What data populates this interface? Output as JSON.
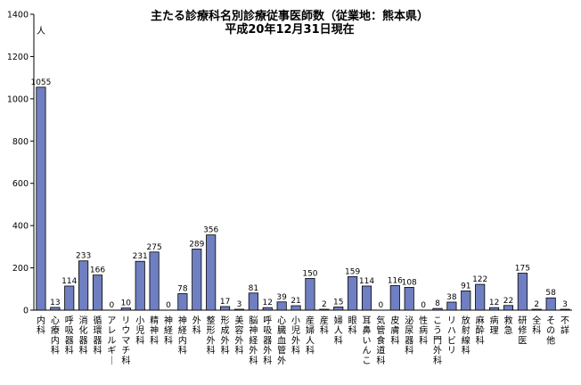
{
  "chart_data": {
    "type": "bar",
    "title": "主たる診療科名別診療従事医師数（従業地：熊本県）",
    "subtitle": "平成20年12月31日現在",
    "ylabel": "人",
    "ylim": [
      0,
      1400
    ],
    "yticks": [
      0,
      200,
      400,
      600,
      800,
      1000,
      1200,
      1400
    ],
    "grid": false,
    "bar_color": "#6f7fc1",
    "categories": [
      "内科",
      "心療内科",
      "呼吸器科",
      "消化器科",
      "循環器科",
      "アレルギー",
      "リウマチ科",
      "小児科",
      "精神科",
      "神経科",
      "神経内科",
      "外科",
      "整形外科",
      "形成外科",
      "美容外科",
      "脳神経外科",
      "呼吸器外科",
      "心臓血管外",
      "小児外科",
      "産婦人科",
      "産科",
      "婦人科",
      "眼科",
      "耳鼻いんこ",
      "気管食道科",
      "皮膚科",
      "泌尿器科",
      "性病科",
      "こう門外科",
      "リハビリ",
      "放射線科",
      "麻酔科",
      "病理",
      "救急",
      "研修医",
      "全科",
      "その他",
      "不詳"
    ],
    "values": [
      1055,
      13,
      114,
      233,
      166,
      0,
      10,
      231,
      275,
      0,
      78,
      289,
      356,
      17,
      3,
      81,
      12,
      39,
      21,
      150,
      2,
      15,
      159,
      114,
      0,
      116,
      108,
      0,
      8,
      38,
      91,
      122,
      12,
      22,
      175,
      2,
      58,
      3
    ]
  }
}
